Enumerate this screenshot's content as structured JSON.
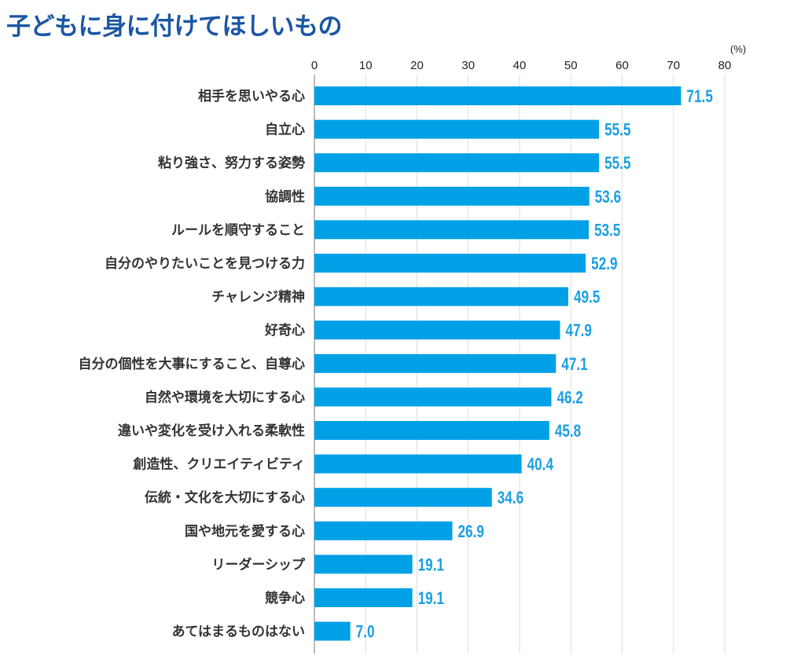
{
  "chart_data": {
    "type": "bar",
    "orientation": "horizontal",
    "title": "子どもに身に付けてほしいもの",
    "unit": "(%)",
    "xlim": [
      0,
      80
    ],
    "ticks": [
      0,
      10,
      20,
      30,
      40,
      50,
      60,
      70,
      80
    ],
    "grid": true,
    "bar_color": "#00a0e6",
    "value_label_color": "#1a9fe2",
    "title_color": "#1b56a4",
    "categories": [
      "相手を思いやる心",
      "自立心",
      "粘り強さ、努力する姿勢",
      "協調性",
      "ルールを順守すること",
      "自分のやりたいことを見つける力",
      "チャレンジ精神",
      "好奇心",
      "自分の個性を大事にすること、自尊心",
      "自然や環境を大切にする心",
      "違いや変化を受け入れる柔軟性",
      "創造性、クリエイティビティ",
      "伝統・文化を大切にする心",
      "国や地元を愛する心",
      "リーダーシップ",
      "競争心",
      "あてはまるものはない"
    ],
    "values": [
      71.5,
      55.5,
      55.5,
      53.6,
      53.5,
      52.9,
      49.5,
      47.9,
      47.1,
      46.2,
      45.8,
      40.4,
      34.6,
      26.9,
      19.1,
      19.1,
      7.0
    ]
  }
}
